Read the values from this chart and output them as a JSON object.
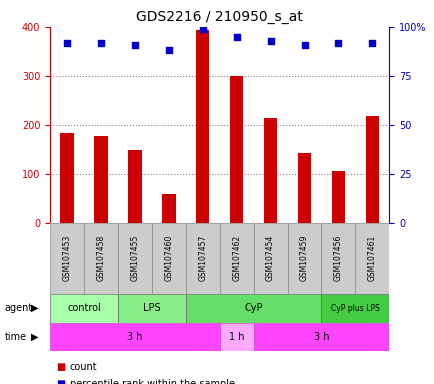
{
  "title": "GDS2216 / 210950_s_at",
  "samples": [
    "GSM107453",
    "GSM107458",
    "GSM107455",
    "GSM107460",
    "GSM107457",
    "GSM107462",
    "GSM107454",
    "GSM107459",
    "GSM107456",
    "GSM107461"
  ],
  "counts": [
    183,
    178,
    148,
    58,
    393,
    300,
    213,
    142,
    105,
    218
  ],
  "percentile_ranks": [
    92,
    92,
    91,
    88,
    99,
    95,
    93,
    91,
    92,
    92
  ],
  "ylim_left": [
    0,
    400
  ],
  "ylim_right": [
    0,
    100
  ],
  "yticks_left": [
    0,
    100,
    200,
    300,
    400
  ],
  "yticks_right": [
    0,
    25,
    50,
    75,
    100
  ],
  "yticklabels_right": [
    "0",
    "25",
    "50",
    "75",
    "100%"
  ],
  "agent_groups": [
    {
      "label": "control",
      "start": 0,
      "end": 2,
      "color": "#aaffaa"
    },
    {
      "label": "LPS",
      "start": 2,
      "end": 4,
      "color": "#88ee88"
    },
    {
      "label": "CyP",
      "start": 4,
      "end": 8,
      "color": "#66dd66"
    },
    {
      "label": "CyP plus LPS",
      "start": 8,
      "end": 10,
      "color": "#44cc44"
    }
  ],
  "time_groups": [
    {
      "label": "3 h",
      "start": 0,
      "end": 5,
      "color": "#ff44ff"
    },
    {
      "label": "1 h",
      "start": 5,
      "end": 6,
      "color": "#ffaaff"
    },
    {
      "label": "3 h",
      "start": 6,
      "end": 10,
      "color": "#ff44ff"
    }
  ],
  "bar_color": "#cc0000",
  "dot_color": "#0000cc",
  "grid_color": "#808080",
  "label_color_left": "#cc0000",
  "label_color_right": "#0000cc",
  "sample_box_color": "#cccccc",
  "sample_box_edge": "#888888",
  "title_fontsize": 10,
  "tick_fontsize": 7,
  "sample_fontsize": 5.5,
  "bar_width": 0.4,
  "dot_size": 15,
  "legend_square_size": 7,
  "legend_fontsize": 7,
  "agent_fontsize": 7,
  "time_fontsize": 7,
  "row_label_fontsize": 7
}
